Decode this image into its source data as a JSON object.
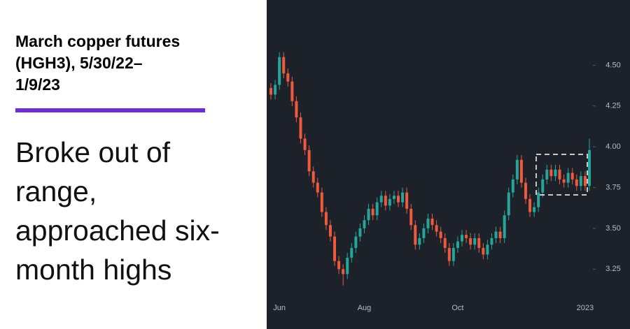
{
  "header": {
    "title_lines": [
      "March copper futures",
      "(HGH3), 5/30/22–",
      "1/9/23"
    ],
    "headline_lines": [
      "Broke out of",
      "range,",
      "approached six-",
      "month highs"
    ]
  },
  "chart_data": {
    "type": "candlestick",
    "up_color": "#26a69a",
    "down_color": "#ef5a3c",
    "categories": [
      null,
      null,
      "Jun",
      null,
      null,
      null,
      null,
      null,
      null,
      null,
      null,
      null,
      null,
      null,
      null,
      null,
      null,
      null,
      null,
      null,
      null,
      null,
      "Aug",
      null,
      null,
      null,
      null,
      null,
      null,
      null,
      null,
      null,
      null,
      null,
      null,
      null,
      null,
      null,
      null,
      null,
      null,
      null,
      null,
      null,
      "Oct",
      null,
      null,
      null,
      null,
      null,
      null,
      null,
      null,
      null,
      null,
      null,
      null,
      null,
      null,
      null,
      null,
      null,
      null,
      null,
      null,
      null,
      null,
      null,
      null,
      null,
      null,
      null,
      null,
      null,
      "2023",
      null
    ],
    "open": [
      4.36,
      4.32,
      4.38,
      4.55,
      4.45,
      4.4,
      4.28,
      4.18,
      4.05,
      3.98,
      3.85,
      3.78,
      3.72,
      3.6,
      3.52,
      3.45,
      3.3,
      3.25,
      3.22,
      3.32,
      3.38,
      3.45,
      3.5,
      3.55,
      3.62,
      3.58,
      3.66,
      3.7,
      3.64,
      3.68,
      3.7,
      3.66,
      3.72,
      3.62,
      3.52,
      3.4,
      3.44,
      3.5,
      3.56,
      3.52,
      3.48,
      3.44,
      3.38,
      3.3,
      3.38,
      3.42,
      3.46,
      3.44,
      3.4,
      3.44,
      3.38,
      3.34,
      3.4,
      3.44,
      3.48,
      3.44,
      3.58,
      3.72,
      3.8,
      3.92,
      3.78,
      3.68,
      3.6,
      3.63,
      3.72,
      3.8,
      3.86,
      3.82,
      3.86,
      3.8,
      3.78,
      3.84,
      3.8,
      3.76,
      3.82,
      3.76
    ],
    "high": [
      4.39,
      4.41,
      4.58,
      4.58,
      4.48,
      4.43,
      4.31,
      4.21,
      4.08,
      4.01,
      3.88,
      3.81,
      3.75,
      3.63,
      3.55,
      3.48,
      3.33,
      3.28,
      3.35,
      3.41,
      3.48,
      3.53,
      3.58,
      3.65,
      3.65,
      3.69,
      3.73,
      3.73,
      3.71,
      3.73,
      3.73,
      3.75,
      3.75,
      3.65,
      3.55,
      3.47,
      3.53,
      3.59,
      3.59,
      3.55,
      3.51,
      3.47,
      3.41,
      3.41,
      3.45,
      3.49,
      3.49,
      3.47,
      3.47,
      3.47,
      3.41,
      3.43,
      3.47,
      3.51,
      3.51,
      3.61,
      3.75,
      3.83,
      3.95,
      3.95,
      3.81,
      3.71,
      3.66,
      3.75,
      3.83,
      3.89,
      3.89,
      3.89,
      3.89,
      3.83,
      3.87,
      3.87,
      3.83,
      3.85,
      3.85,
      4.05
    ],
    "low": [
      4.29,
      4.29,
      4.35,
      4.42,
      4.37,
      4.25,
      4.15,
      4.02,
      3.95,
      3.82,
      3.75,
      3.69,
      3.57,
      3.49,
      3.42,
      3.27,
      3.22,
      3.15,
      3.19,
      3.29,
      3.35,
      3.42,
      3.47,
      3.52,
      3.55,
      3.55,
      3.63,
      3.61,
      3.61,
      3.65,
      3.63,
      3.63,
      3.59,
      3.49,
      3.37,
      3.37,
      3.41,
      3.47,
      3.49,
      3.45,
      3.41,
      3.35,
      3.27,
      3.27,
      3.35,
      3.39,
      3.41,
      3.37,
      3.37,
      3.35,
      3.31,
      3.31,
      3.37,
      3.41,
      3.41,
      3.41,
      3.55,
      3.69,
      3.77,
      3.75,
      3.65,
      3.57,
      3.57,
      3.6,
      3.69,
      3.77,
      3.79,
      3.79,
      3.77,
      3.75,
      3.75,
      3.77,
      3.73,
      3.73,
      3.73,
      3.73
    ],
    "close": [
      4.32,
      4.38,
      4.55,
      4.45,
      4.4,
      4.28,
      4.18,
      4.05,
      3.98,
      3.85,
      3.78,
      3.72,
      3.6,
      3.52,
      3.45,
      3.3,
      3.25,
      3.22,
      3.32,
      3.38,
      3.45,
      3.5,
      3.55,
      3.62,
      3.58,
      3.66,
      3.7,
      3.64,
      3.68,
      3.7,
      3.66,
      3.72,
      3.62,
      3.52,
      3.4,
      3.44,
      3.5,
      3.56,
      3.52,
      3.48,
      3.44,
      3.38,
      3.3,
      3.38,
      3.42,
      3.46,
      3.44,
      3.4,
      3.44,
      3.38,
      3.34,
      3.4,
      3.44,
      3.48,
      3.44,
      3.58,
      3.72,
      3.8,
      3.92,
      3.78,
      3.68,
      3.6,
      3.63,
      3.72,
      3.8,
      3.86,
      3.82,
      3.86,
      3.8,
      3.78,
      3.84,
      3.8,
      3.76,
      3.82,
      3.76,
      3.98
    ],
    "ylim": [
      3.08,
      4.9
    ],
    "yticks": [
      {
        "value": 3.25,
        "label": "3.25"
      },
      {
        "value": 3.5,
        "label": "3.50"
      },
      {
        "value": 3.75,
        "label": "3.75"
      },
      {
        "value": 4,
        "label": "4.00"
      },
      {
        "value": 4.25,
        "label": "4.25"
      },
      {
        "value": 4.5,
        "label": "4.50"
      }
    ]
  }
}
